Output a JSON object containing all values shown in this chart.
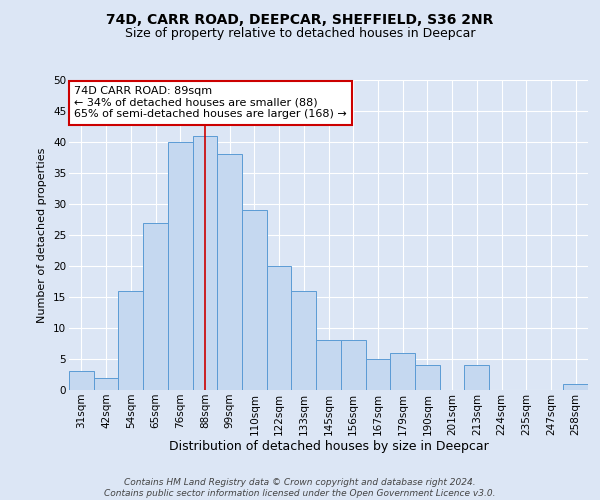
{
  "title1": "74D, CARR ROAD, DEEPCAR, SHEFFIELD, S36 2NR",
  "title2": "Size of property relative to detached houses in Deepcar",
  "xlabel": "Distribution of detached houses by size in Deepcar",
  "ylabel": "Number of detached properties",
  "bar_labels": [
    "31sqm",
    "42sqm",
    "54sqm",
    "65sqm",
    "76sqm",
    "88sqm",
    "99sqm",
    "110sqm",
    "122sqm",
    "133sqm",
    "145sqm",
    "156sqm",
    "167sqm",
    "179sqm",
    "190sqm",
    "201sqm",
    "213sqm",
    "224sqm",
    "235sqm",
    "247sqm",
    "258sqm"
  ],
  "bar_values": [
    3,
    2,
    16,
    27,
    40,
    41,
    38,
    29,
    20,
    16,
    8,
    8,
    5,
    6,
    4,
    0,
    4,
    0,
    0,
    0,
    1
  ],
  "bar_color": "#c5d8f0",
  "bar_edge_color": "#5b9bd5",
  "vline_position": 5.0,
  "vline_color": "#cc0000",
  "ylim": [
    0,
    50
  ],
  "yticks": [
    0,
    5,
    10,
    15,
    20,
    25,
    30,
    35,
    40,
    45,
    50
  ],
  "annotation_text": "74D CARR ROAD: 89sqm\n← 34% of detached houses are smaller (88)\n65% of semi-detached houses are larger (168) →",
  "annotation_box_facecolor": "#ffffff",
  "annotation_box_edgecolor": "#cc0000",
  "background_color": "#dce6f5",
  "plot_bg_color": "#dce6f5",
  "grid_color": "#ffffff",
  "footer_text": "Contains HM Land Registry data © Crown copyright and database right 2024.\nContains public sector information licensed under the Open Government Licence v3.0.",
  "title1_fontsize": 10,
  "title2_fontsize": 9,
  "xlabel_fontsize": 9,
  "ylabel_fontsize": 8,
  "tick_fontsize": 7.5,
  "annotation_fontsize": 8,
  "footer_fontsize": 6.5
}
